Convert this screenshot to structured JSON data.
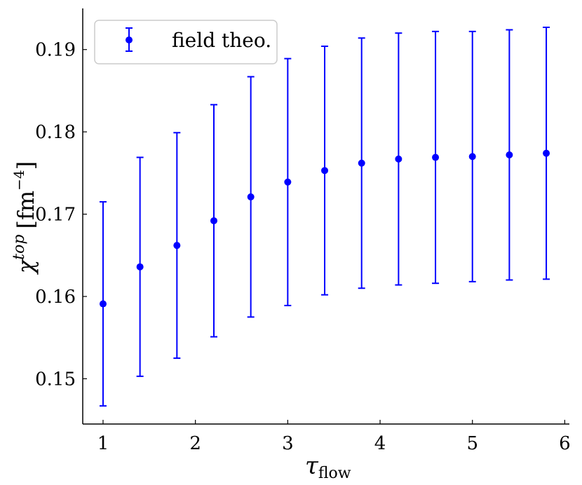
{
  "chart_data": {
    "type": "scatter",
    "title": "",
    "xlabel": "τ",
    "xlabel_sub": "flow",
    "ylabel": "χ",
    "ylabel_sup": "top",
    "ylabel_unit": "[fm",
    "ylabel_unit_sup": "−4",
    "ylabel_unit_close": "]",
    "xlim": [
      0.78,
      6.05
    ],
    "ylim": [
      0.1445,
      0.195
    ],
    "xticks": [
      1,
      2,
      3,
      4,
      5,
      6
    ],
    "xtick_labels": [
      "1",
      "2",
      "3",
      "4",
      "5",
      "6"
    ],
    "yticks": [
      0.15,
      0.16,
      0.17,
      0.18,
      0.19
    ],
    "ytick_labels": [
      "0.15",
      "0.16",
      "0.17",
      "0.18",
      "0.19"
    ],
    "grid": false,
    "legend_position": "top-left",
    "series": [
      {
        "name": "field theo.",
        "color": "#0000ff",
        "marker": "circle",
        "error_bars": true,
        "x": [
          1.0,
          1.4,
          1.8,
          2.2,
          2.6,
          3.0,
          3.4,
          3.8,
          4.2,
          4.6,
          5.0,
          5.4,
          5.8
        ],
        "y": [
          0.1591,
          0.1636,
          0.1662,
          0.1692,
          0.1721,
          0.1739,
          0.1753,
          0.1762,
          0.1767,
          0.1769,
          0.177,
          0.1772,
          0.1774
        ],
        "yerr": [
          0.0124,
          0.0133,
          0.0137,
          0.0141,
          0.0146,
          0.015,
          0.0151,
          0.0152,
          0.0153,
          0.0153,
          0.0152,
          0.0152,
          0.0153
        ]
      }
    ]
  }
}
